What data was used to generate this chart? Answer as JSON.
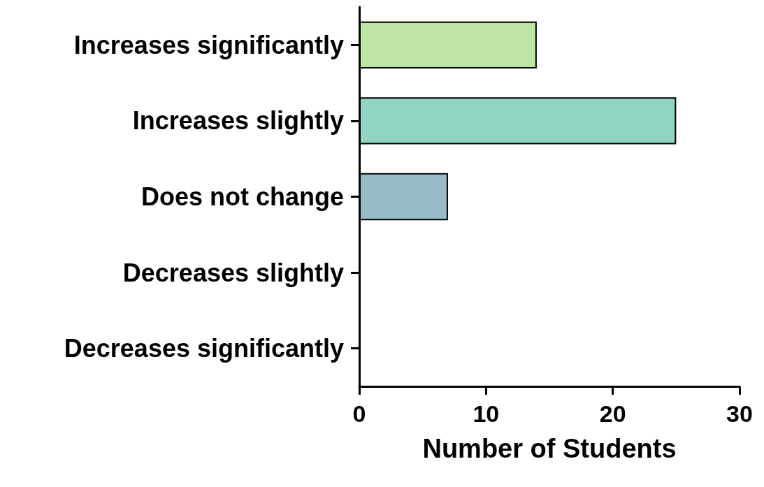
{
  "chart_data": {
    "type": "bar",
    "orientation": "horizontal",
    "xlabel": "Number of Students",
    "categories": [
      "Increases significantly",
      "Increases slightly",
      "Does not change",
      "Decreases slightly",
      "Decreases significantly"
    ],
    "values": [
      14,
      25,
      7,
      0,
      0
    ],
    "colors": [
      "#bde6a5",
      "#92d4c3",
      "#97bcc7",
      null,
      null
    ],
    "xlim": [
      0,
      30
    ],
    "xticks": [
      0,
      10,
      20,
      30
    ],
    "grid": false
  }
}
